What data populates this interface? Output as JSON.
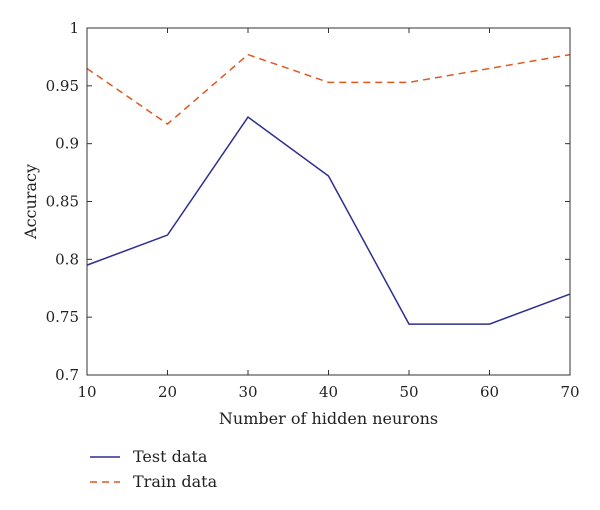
{
  "chart_data": {
    "type": "line",
    "xlabel": "Number of hidden neurons",
    "ylabel": "Accuracy",
    "x": [
      10,
      20,
      30,
      40,
      50,
      60,
      70
    ],
    "xlim": [
      10,
      70
    ],
    "ylim": [
      0.7,
      1.0
    ],
    "xticks": [
      10,
      20,
      30,
      40,
      50,
      60,
      70
    ],
    "yticks": [
      0.7,
      0.75,
      0.8,
      0.85,
      0.9,
      0.95,
      1.0
    ],
    "ytick_labels": [
      "0.7",
      "0.75",
      "0.8",
      "0.85",
      "0.9",
      "0.95",
      "1"
    ],
    "grid": false,
    "legend_position": "bottom-left, below plot",
    "series": [
      {
        "name": "Test data",
        "color": "#2e2e8f",
        "dash": "solid",
        "values": [
          0.795,
          0.821,
          0.923,
          0.872,
          0.744,
          0.744,
          0.77
        ]
      },
      {
        "name": "Train data",
        "color": "#e0571f",
        "dash": "dashed",
        "values": [
          0.965,
          0.917,
          0.977,
          0.953,
          0.953,
          0.965,
          0.977
        ]
      }
    ]
  }
}
